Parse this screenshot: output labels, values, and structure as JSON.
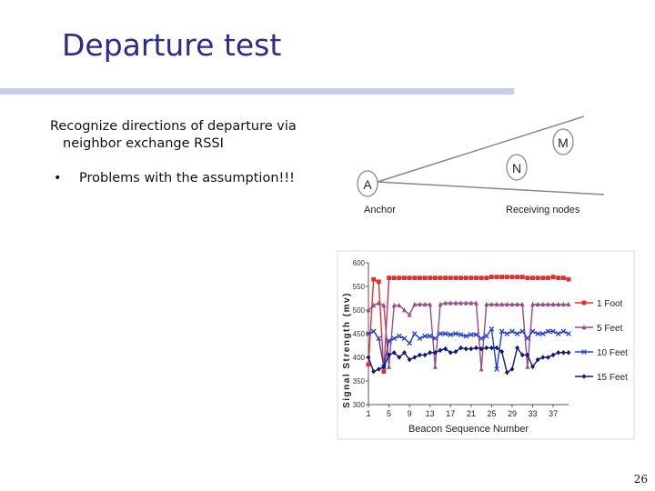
{
  "slide": {
    "title": "Departure test",
    "paragraph_line1": "Recognize directions of departure via",
    "paragraph_line2": "neighbor exchange RSSI",
    "bullet_symbol": "•",
    "bullet_text": "Problems with the assumption!!!",
    "page_number": "26"
  },
  "diagram": {
    "nodes": [
      {
        "id": "A",
        "label": "A"
      },
      {
        "id": "N",
        "label": "N"
      },
      {
        "id": "M",
        "label": "M"
      }
    ],
    "anchor_label": "Anchor",
    "receiving_label": "Receiving nodes"
  },
  "chart_data": {
    "type": "line",
    "title": "",
    "xlabel": "Beacon Sequence Number",
    "ylabel": "Signal Strength (mv)",
    "ylim": [
      300,
      600
    ],
    "yticks": [
      300,
      350,
      400,
      450,
      500,
      550,
      600
    ],
    "xlim": [
      1,
      40
    ],
    "xticks": [
      1,
      5,
      9,
      13,
      17,
      21,
      25,
      29,
      33,
      37
    ],
    "grid": false,
    "legend_position": "right",
    "x": [
      1,
      2,
      3,
      4,
      5,
      6,
      7,
      8,
      9,
      10,
      11,
      12,
      13,
      14,
      15,
      16,
      17,
      18,
      19,
      20,
      21,
      22,
      23,
      24,
      25,
      26,
      27,
      28,
      29,
      30,
      31,
      32,
      33,
      34,
      35,
      36,
      37,
      38,
      39,
      40
    ],
    "series": [
      {
        "name": "1 Foot",
        "color": "#e03030",
        "marker": "square",
        "values": [
          385,
          565,
          560,
          370,
          568,
          568,
          568,
          568,
          568,
          568,
          568,
          568,
          568,
          568,
          568,
          568,
          568,
          568,
          568,
          568,
          568,
          568,
          568,
          568,
          570,
          570,
          570,
          570,
          570,
          570,
          570,
          568,
          568,
          568,
          568,
          568,
          570,
          568,
          568,
          565
        ]
      },
      {
        "name": "5 Feet",
        "color": "#9a4a8a",
        "marker": "triangle",
        "values": [
          500,
          510,
          515,
          510,
          380,
          510,
          510,
          500,
          490,
          512,
          512,
          512,
          512,
          380,
          512,
          515,
          515,
          515,
          515,
          515,
          515,
          515,
          375,
          512,
          512,
          512,
          512,
          512,
          512,
          512,
          512,
          380,
          512,
          512,
          512,
          512,
          512,
          512,
          512,
          512
        ]
      },
      {
        "name": "10 Feet",
        "color": "#2040d0",
        "marker": "x",
        "values": [
          450,
          455,
          440,
          380,
          435,
          440,
          445,
          440,
          430,
          450,
          440,
          445,
          445,
          440,
          450,
          450,
          448,
          450,
          448,
          445,
          448,
          448,
          440,
          445,
          460,
          375,
          455,
          450,
          455,
          450,
          455,
          440,
          455,
          450,
          450,
          455,
          455,
          450,
          455,
          450
        ]
      },
      {
        "name": "15 Feet",
        "color": "#101878",
        "marker": "diamond",
        "values": [
          400,
          370,
          375,
          380,
          405,
          410,
          400,
          410,
          395,
          400,
          405,
          405,
          410,
          410,
          415,
          418,
          410,
          412,
          420,
          418,
          418,
          420,
          418,
          420,
          420,
          420,
          412,
          368,
          375,
          420,
          405,
          405,
          380,
          395,
          400,
          400,
          405,
          410,
          410,
          410
        ]
      }
    ]
  }
}
